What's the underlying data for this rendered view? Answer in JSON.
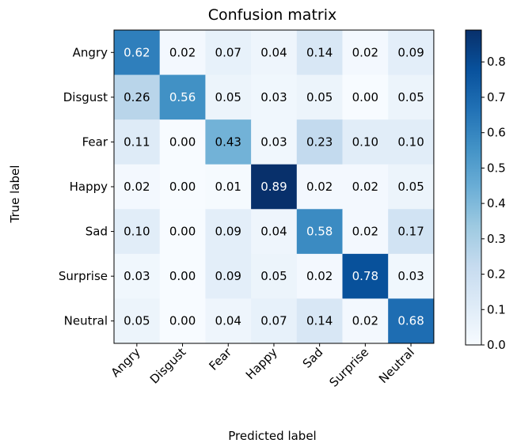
{
  "chart_data": {
    "type": "heatmap",
    "title": "Confusion matrix",
    "xlabel": "Predicted label",
    "ylabel": "True label",
    "x_categories": [
      "Angry",
      "Disgust",
      "Fear",
      "Happy",
      "Sad",
      "Surprise",
      "Neutral"
    ],
    "y_categories": [
      "Angry",
      "Disgust",
      "Fear",
      "Happy",
      "Sad",
      "Surprise",
      "Neutral"
    ],
    "values": [
      [
        0.62,
        0.02,
        0.07,
        0.04,
        0.14,
        0.02,
        0.09
      ],
      [
        0.26,
        0.56,
        0.05,
        0.03,
        0.05,
        0.0,
        0.05
      ],
      [
        0.11,
        0.0,
        0.43,
        0.03,
        0.23,
        0.1,
        0.1
      ],
      [
        0.02,
        0.0,
        0.01,
        0.89,
        0.02,
        0.02,
        0.05
      ],
      [
        0.1,
        0.0,
        0.09,
        0.04,
        0.58,
        0.02,
        0.17
      ],
      [
        0.03,
        0.0,
        0.09,
        0.05,
        0.02,
        0.78,
        0.03
      ],
      [
        0.05,
        0.0,
        0.04,
        0.07,
        0.14,
        0.02,
        0.68
      ]
    ],
    "value_labels": [
      [
        "0.62",
        "0.02",
        "0.07",
        "0.04",
        "0.14",
        "0.02",
        "0.09"
      ],
      [
        "0.26",
        "0.56",
        "0.05",
        "0.03",
        "0.05",
        "0.00",
        "0.05"
      ],
      [
        "0.11",
        "0.00",
        "0.43",
        "0.03",
        "0.23",
        "0.10",
        "0.10"
      ],
      [
        "0.02",
        "0.00",
        "0.01",
        "0.89",
        "0.02",
        "0.02",
        "0.05"
      ],
      [
        "0.10",
        "0.00",
        "0.09",
        "0.04",
        "0.58",
        "0.02",
        "0.17"
      ],
      [
        "0.03",
        "0.00",
        "0.09",
        "0.05",
        "0.02",
        "0.78",
        "0.03"
      ],
      [
        "0.05",
        "0.00",
        "0.04",
        "0.07",
        "0.14",
        "0.02",
        "0.68"
      ]
    ],
    "colormap": "Blues",
    "colorbar": {
      "range": [
        0.0,
        0.89
      ],
      "ticks": [
        0.0,
        0.1,
        0.2,
        0.3,
        0.4,
        0.5,
        0.6,
        0.7,
        0.8
      ],
      "tick_labels": [
        "0.0",
        "0.1",
        "0.2",
        "0.3",
        "0.4",
        "0.5",
        "0.6",
        "0.7",
        "0.8"
      ]
    },
    "text_color_threshold": 0.445,
    "text_colors": {
      "light": "#ffffff",
      "dark": "#000000"
    },
    "x_tick_rotation": 45,
    "grid": false
  }
}
